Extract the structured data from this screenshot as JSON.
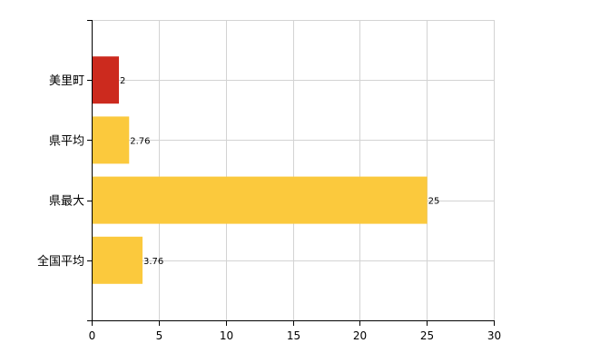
{
  "chart_data": {
    "type": "bar",
    "orientation": "horizontal",
    "categories": [
      "美里町",
      "県平均",
      "県最大",
      "全国平均"
    ],
    "values": [
      2,
      2.76,
      25,
      3.76
    ],
    "data_labels": [
      "2",
      "2.76",
      "25",
      "3.76"
    ],
    "bar_colors": [
      "#cc2a1e",
      "#fbc93d",
      "#fbc93d",
      "#fbc93d"
    ],
    "xlim": [
      0,
      30
    ],
    "x_ticks": [
      0,
      5,
      10,
      15,
      20,
      25,
      30
    ],
    "x_tick_labels": [
      "0",
      "5",
      "10",
      "15",
      "20",
      "25",
      "30"
    ],
    "grid": true,
    "title": "",
    "xlabel": "",
    "ylabel": ""
  }
}
